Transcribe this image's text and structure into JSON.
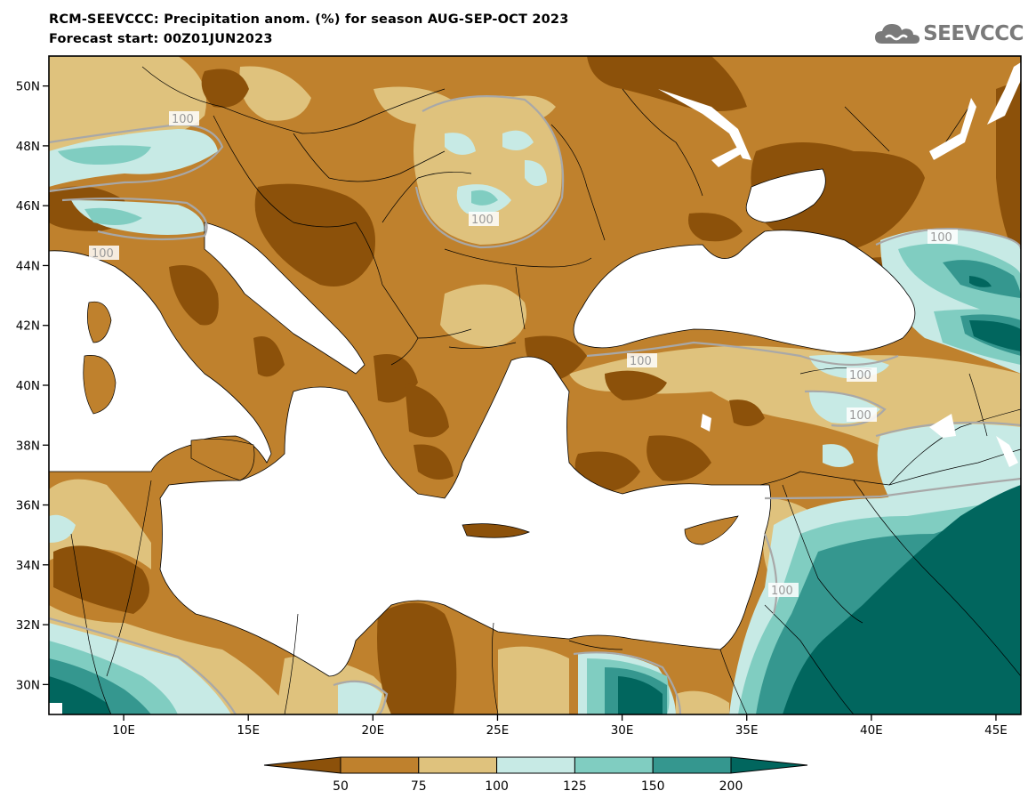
{
  "title": {
    "line1": "RCM-SEEVCCC: Precipitation anom. (%) for season AUG-SEP-OCT 2023",
    "line2": "Forecast start: 00Z01JUN2023"
  },
  "logo": {
    "text": "SEEVCCC",
    "icon": "cloud-icon"
  },
  "map": {
    "variable": "Precipitation anomaly",
    "unit": "%",
    "lon_range": [
      7,
      46
    ],
    "lat_range": [
      29,
      51
    ],
    "x_ticks": [
      "10E",
      "15E",
      "20E",
      "25E",
      "30E",
      "35E",
      "40E",
      "45E"
    ],
    "y_ticks": [
      "50N",
      "48N",
      "46N",
      "44N",
      "42N",
      "40N",
      "38N",
      "36N",
      "34N",
      "32N",
      "30N"
    ],
    "contour_labels": [
      "100",
      "100",
      "100",
      "100",
      "100",
      "100",
      "100",
      "100"
    ]
  },
  "colorbar": {
    "levels": [
      "50",
      "75",
      "100",
      "125",
      "150",
      "200"
    ],
    "colors": [
      "#8c510a",
      "#bf812d",
      "#dfc27d",
      "#c7eae5",
      "#80cdc1",
      "#35978f",
      "#01665e"
    ]
  }
}
